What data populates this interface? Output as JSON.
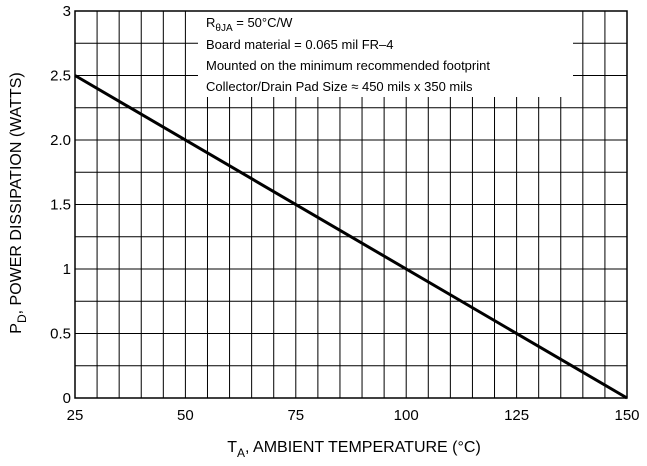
{
  "chart_data": {
    "type": "line",
    "x_range": [
      25,
      150
    ],
    "y_range": [
      0,
      3
    ],
    "x_ticks": [
      25,
      50,
      75,
      100,
      125,
      150
    ],
    "x_tick_labels": [
      "25",
      "50",
      "75",
      "100",
      "125",
      "150"
    ],
    "y_ticks": [
      0,
      0.5,
      1,
      1.5,
      2,
      2.5,
      3
    ],
    "y_tick_labels": [
      "0",
      "0.5",
      "1",
      "1.5",
      "2.0",
      "2.5",
      "3"
    ],
    "x_minor_step": 5,
    "y_minor_step": 0.25,
    "grid": true,
    "xlabel": {
      "symbol": "T",
      "subscript": "A",
      "text": ", AMBIENT TEMPERATURE (°C)"
    },
    "ylabel": {
      "symbol": "P",
      "subscript": "D",
      "text": ", POWER DISSIPATION (WATTS)"
    },
    "series": [
      {
        "x": [
          25,
          150
        ],
        "y": [
          2.5,
          0
        ],
        "color": "#000000"
      }
    ],
    "annotation": {
      "lines": [
        {
          "symbol": "R",
          "subscript": "θJA",
          "text": " = 50°C/W"
        },
        {
          "text": "Board material = 0.065 mil FR–4"
        },
        {
          "text": "Mounted on the minimum recommended footprint"
        },
        {
          "text": "Collector/Drain Pad Size ≈ 450 mils x 350 mils"
        }
      ],
      "placement": "top-right"
    }
  }
}
